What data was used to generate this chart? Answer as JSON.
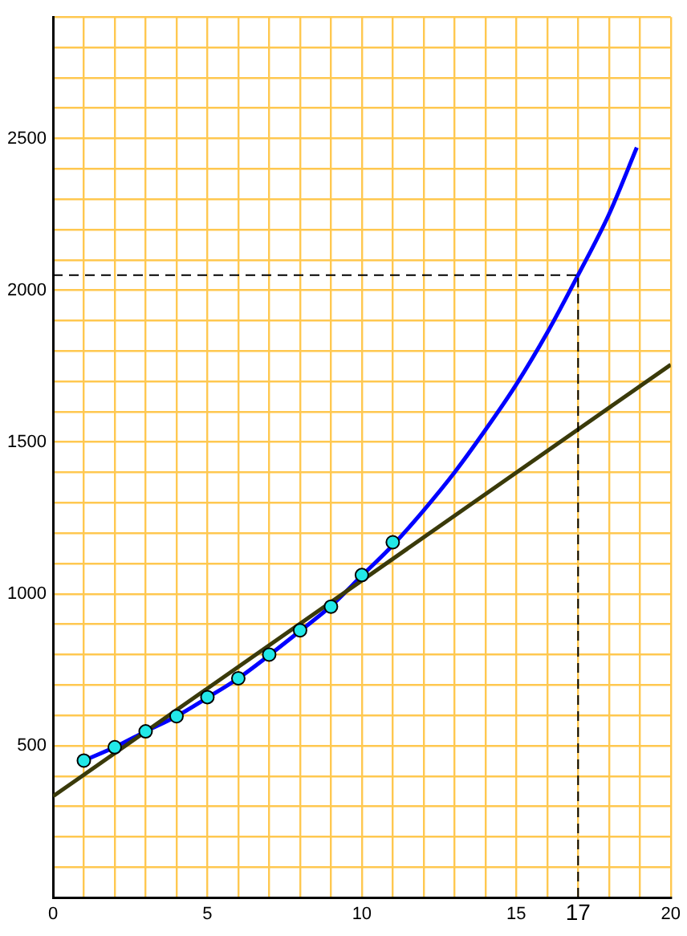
{
  "chart_data": {
    "type": "line",
    "xlim": [
      0,
      20
    ],
    "ylim": [
      0,
      2900
    ],
    "xticks": [
      0,
      {
        "value": 1,
        "label": null
      },
      {
        "value": 2,
        "label": null
      },
      {
        "value": 3,
        "label": null
      },
      {
        "value": 4,
        "label": null
      },
      5,
      {
        "value": 6,
        "label": null
      },
      {
        "value": 7,
        "label": null
      },
      {
        "value": 8,
        "label": null
      },
      {
        "value": 9,
        "label": null
      },
      10,
      {
        "value": 11,
        "label": null
      },
      {
        "value": 12,
        "label": null
      },
      {
        "value": 13,
        "label": null
      },
      {
        "value": 14,
        "label": null
      },
      15,
      {
        "value": 16,
        "label": null
      },
      {
        "value": 17,
        "label": null
      },
      {
        "value": 18,
        "label": null
      },
      {
        "value": 19,
        "label": null
      },
      20
    ],
    "yticks": [
      {
        "value": 0,
        "label": null
      },
      {
        "value": 100,
        "label": null
      },
      {
        "value": 200,
        "label": null
      },
      {
        "value": 300,
        "label": null
      },
      {
        "value": 400,
        "label": null
      },
      500,
      {
        "value": 600,
        "label": null
      },
      {
        "value": 700,
        "label": null
      },
      {
        "value": 800,
        "label": null
      },
      {
        "value": 900,
        "label": null
      },
      1000,
      {
        "value": 1100,
        "label": null
      },
      {
        "value": 1200,
        "label": null
      },
      {
        "value": 1300,
        "label": null
      },
      {
        "value": 1400,
        "label": null
      },
      1500,
      {
        "value": 1600,
        "label": null
      },
      {
        "value": 1700,
        "label": null
      },
      {
        "value": 1800,
        "label": null
      },
      {
        "value": 1900,
        "label": null
      },
      2000,
      {
        "value": 2100,
        "label": null
      },
      {
        "value": 2200,
        "label": null
      },
      {
        "value": 2300,
        "label": null
      },
      {
        "value": 2400,
        "label": null
      },
      2500,
      {
        "value": 2600,
        "label": null
      },
      {
        "value": 2700,
        "label": null
      },
      {
        "value": 2800,
        "label": null
      },
      {
        "value": 2900,
        "label": null
      }
    ],
    "grid": true,
    "legend": false,
    "series": [
      {
        "type": "line",
        "color": "#3a3a0a",
        "x": [
          0,
          20
        ],
        "values": [
          333,
          1755
        ],
        "marker": "none"
      },
      {
        "type": "line",
        "color": "#0000ff",
        "x": [
          1,
          2,
          3,
          4,
          5,
          6,
          7,
          8,
          9,
          10,
          11,
          12,
          13,
          14,
          15,
          16,
          17,
          18,
          18.9
        ],
        "values": [
          451,
          495,
          547,
          597,
          658,
          722,
          798,
          878,
          960,
          1060,
          1160,
          1275,
          1400,
          1540,
          1690,
          1860,
          2050,
          2250,
          2470
        ],
        "marker": "none"
      },
      {
        "type": "scatter",
        "color": "#22e8e8",
        "x": [
          1,
          2,
          3,
          4,
          5,
          6,
          7,
          8,
          9,
          10,
          11
        ],
        "values": [
          451,
          495,
          547,
          597,
          660,
          722,
          800,
          880,
          958,
          1062,
          1170
        ],
        "marker": "circle"
      }
    ],
    "ref_lines": [
      {
        "axis": "x",
        "value": 17,
        "label": "17",
        "color": "#000000",
        "line_style": "dashed"
      },
      {
        "axis": "y",
        "value": 2050,
        "label": null,
        "color": "#000000",
        "line_style": "dashed"
      }
    ]
  }
}
